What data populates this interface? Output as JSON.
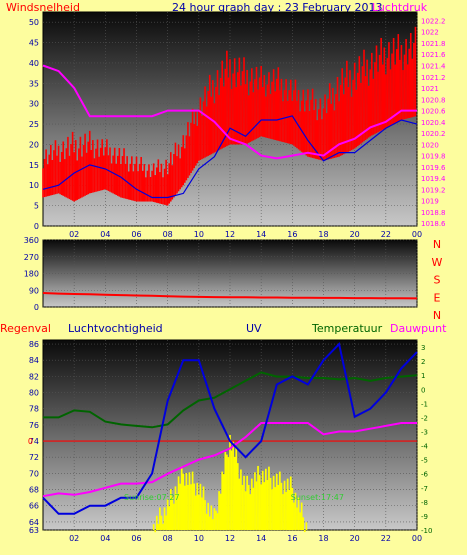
{
  "colors": {
    "page_bg": "#fdfd9e",
    "wind": "#ff0000",
    "gust": "#0000dd",
    "pressure": "#ff00ff",
    "direction": "#ff0000",
    "humidity": "#0000dd",
    "temperature": "#006400",
    "dewpoint": "#ff00ff",
    "uv": "#ffff00",
    "rain": "#ff0000",
    "sunrise_label": "#33cc33"
  },
  "chart_data": [
    {
      "type": "line",
      "panel": "wind-pressure",
      "title": "24 hour graph day : 23 February 2013",
      "ylabel_left": "Windsnelheid",
      "ylabel_right": "Luchtdruk",
      "x_ticks": [
        "02",
        "04",
        "06",
        "08",
        "10",
        "12",
        "14",
        "16",
        "18",
        "20",
        "22",
        "00"
      ],
      "y_left_ticks": [
        "0",
        "5",
        "10",
        "15",
        "20",
        "25",
        "30",
        "35",
        "40",
        "45",
        "50"
      ],
      "y_left_range": [
        0,
        52.5
      ],
      "y_right_ticks": [
        "1018.6",
        "1018.8",
        "1019",
        "1019.2",
        "1019.4",
        "1019.6",
        "1019.8",
        "1020",
        "1020.2",
        "1020.4",
        "1020.6",
        "1020.8",
        "1021",
        "1021.2",
        "1021.4",
        "1021.6",
        "1021.8",
        "1022",
        "1022.2"
      ],
      "y_right_range": [
        1018.55,
        1022.35
      ],
      "hours": [
        0,
        1,
        2,
        3,
        4,
        5,
        6,
        7,
        8,
        9,
        10,
        11,
        12,
        13,
        14,
        15,
        16,
        17,
        18,
        19,
        20,
        21,
        22,
        23,
        24
      ],
      "series": [
        {
          "axis": "left",
          "band": true,
          "low": [
            7,
            8,
            6,
            8,
            9,
            7,
            6,
            6,
            5,
            10,
            16,
            18,
            20,
            20,
            22,
            21,
            20,
            17,
            16,
            17,
            19,
            22,
            24,
            26,
            27
          ],
          "high": [
            20,
            22,
            24,
            24,
            22,
            20,
            18,
            16,
            18,
            24,
            33,
            40,
            45,
            42,
            40,
            40,
            37,
            35,
            33,
            40,
            43,
            45,
            48,
            48,
            50
          ]
        },
        {
          "axis": "left",
          "values": [
            9,
            10,
            13,
            15,
            14,
            12,
            9,
            7,
            7,
            8,
            14,
            17,
            24,
            22,
            26,
            26,
            27,
            21,
            16,
            18,
            18,
            21,
            24,
            26,
            25
          ]
        },
        {
          "axis": "right",
          "values": [
            1021.4,
            1021.3,
            1021.0,
            1020.5,
            1020.5,
            1020.5,
            1020.5,
            1020.5,
            1020.6,
            1020.6,
            1020.6,
            1020.4,
            1020.1,
            1020.0,
            1019.8,
            1019.75,
            1019.8,
            1019.85,
            1019.8,
            1020.0,
            1020.1,
            1020.3,
            1020.4,
            1020.6,
            1020.6
          ]
        }
      ]
    },
    {
      "type": "line",
      "panel": "wind-direction",
      "y_ticks": [
        "0",
        "90",
        "180",
        "270",
        "360"
      ],
      "y_range": [
        0,
        360
      ],
      "compass_labels": [
        "N",
        "W",
        "S",
        "E",
        "N"
      ],
      "series": [
        {
          "values": [
            75,
            72,
            70,
            68,
            66,
            64,
            62,
            60,
            58,
            56,
            54,
            53,
            52,
            52,
            51,
            51,
            50,
            50,
            49,
            49,
            48,
            48,
            47,
            47,
            46
          ]
        }
      ]
    },
    {
      "type": "line",
      "panel": "humidity-temp-uv",
      "legend": [
        "Regenval",
        "Luchtvochtigheid",
        "UV",
        "Temperatuur",
        "Dauwpunt"
      ],
      "y_left_ticks": [
        "63",
        "64",
        "66",
        "68",
        "70",
        "72",
        "74",
        "76",
        "78",
        "80",
        "82",
        "84",
        "86"
      ],
      "y_left_range": [
        63,
        86.5
      ],
      "y_right_ticks": [
        "-10",
        "-9",
        "-8",
        "-7",
        "-6",
        "-5",
        "-4",
        "-3",
        "-2",
        "-1",
        "0",
        "1",
        "2",
        "3"
      ],
      "y_right_range": [
        -10,
        3.5
      ],
      "rain_axis_label": "0",
      "rain_value": 0,
      "sunrise_label": "Sunrise:07:27",
      "sunset_label": "Sunset:17:47",
      "series": [
        {
          "name": "Luchtvochtigheid",
          "axis": "left",
          "values": [
            67,
            65,
            65,
            66,
            66,
            67,
            67,
            70,
            79,
            84,
            84,
            78,
            74,
            72,
            74,
            81,
            82,
            81,
            84,
            86,
            77,
            78,
            80,
            83,
            85
          ]
        },
        {
          "name": "Temperatuur",
          "axis": "right",
          "values": [
            -2,
            -2,
            -1.5,
            -1.6,
            -2.3,
            -2.5,
            -2.6,
            -2.7,
            -2.5,
            -1.5,
            -0.8,
            -0.6,
            0,
            0.6,
            1.2,
            0.9,
            0.9,
            0.8,
            0.8,
            0.7,
            0.8,
            0.6,
            0.8,
            0.9,
            1.0
          ]
        },
        {
          "name": "Dauwpunt",
          "axis": "right",
          "values": [
            -7.6,
            -7.4,
            -7.5,
            -7.3,
            -7,
            -6.7,
            -6.7,
            -6.6,
            -6,
            -5.5,
            -5,
            -4.7,
            -4.2,
            -3.4,
            -2.4,
            -2.4,
            -2.4,
            -2.4,
            -3.2,
            -3.0,
            -3.0,
            -2.8,
            -2.6,
            -2.4,
            -2.4
          ]
        },
        {
          "name": "UV",
          "axis": "right",
          "values": [
            -10,
            -10,
            -10,
            -10,
            -10,
            -10,
            -10,
            -10,
            -8.3,
            -6,
            -7,
            -9.2,
            -3.5,
            -7,
            -6,
            -6.5,
            -7,
            -10,
            -10,
            -10,
            -10,
            -10,
            -10,
            -10,
            -10
          ]
        }
      ]
    }
  ]
}
